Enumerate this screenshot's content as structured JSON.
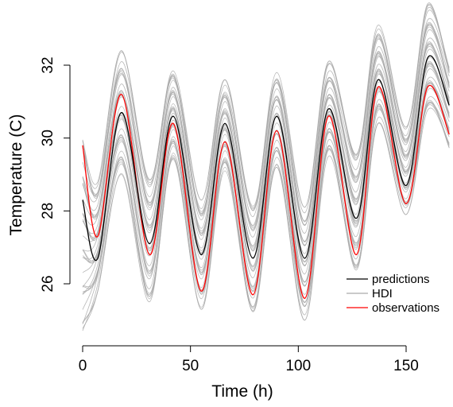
{
  "chart_data": {
    "type": "line",
    "title": "",
    "xlabel": "Time (h)",
    "ylabel": "Temperature (C)",
    "xlim": [
      0,
      170
    ],
    "ylim": [
      24.5,
      33.5
    ],
    "x_ticks": [
      0,
      50,
      100,
      150
    ],
    "y_ticks": [
      26,
      28,
      30,
      32
    ],
    "grid": false,
    "legend_position": "bottom-right",
    "colors": {
      "predictions": "#000000",
      "HDI": "#aaaaaa",
      "observations": "#ff0000"
    },
    "legend": [
      {
        "label": "predictions",
        "color": "#000000"
      },
      {
        "label": "HDI",
        "color": "#aaaaaa"
      },
      {
        "label": "observations",
        "color": "#ff0000"
      }
    ],
    "x": [
      0,
      7,
      18,
      31,
      42,
      55,
      66,
      79,
      90,
      103,
      114,
      127,
      137,
      150,
      160,
      170
    ],
    "series": [
      {
        "name": "predictions",
        "values": [
          28.3,
          26.7,
          30.7,
          27.1,
          30.6,
          26.8,
          30.4,
          26.7,
          30.6,
          26.7,
          30.8,
          27.8,
          31.6,
          28.7,
          32.2,
          30.9
        ]
      },
      {
        "name": "observations",
        "values": [
          29.8,
          27.3,
          31.2,
          26.8,
          30.4,
          25.8,
          29.9,
          25.7,
          30.2,
          25.6,
          30.6,
          26.8,
          31.4,
          28.2,
          31.4,
          30.1
        ]
      },
      {
        "name": "HDI",
        "values_low": [
          24.6,
          25.8,
          29.0,
          25.4,
          29.4,
          25.3,
          29.1,
          25.1,
          29.2,
          25.0,
          29.5,
          26.3,
          30.4,
          27.9,
          30.7,
          29.7
        ],
        "values_high": [
          30.2,
          28.8,
          32.4,
          28.9,
          31.9,
          28.3,
          31.6,
          28.2,
          31.8,
          28.1,
          32.1,
          29.7,
          33.1,
          30.3,
          33.7,
          32.0
        ]
      }
    ]
  }
}
